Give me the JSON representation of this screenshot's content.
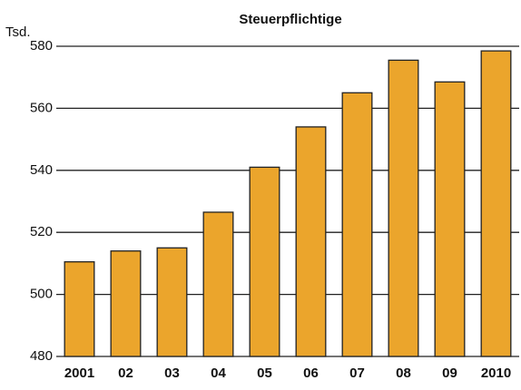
{
  "chart_data": {
    "type": "bar",
    "title": "Steuerpflichtige",
    "y_label": "Tsd.",
    "categories": [
      "2001",
      "02",
      "03",
      "04",
      "05",
      "06",
      "07",
      "08",
      "09",
      "2010"
    ],
    "values": [
      510.5,
      514,
      515,
      526.5,
      541,
      554,
      565,
      575.5,
      568.5,
      578.5
    ],
    "color": "#eba52c",
    "ylim": [
      480,
      580
    ],
    "yticks": [
      480,
      500,
      520,
      540,
      560,
      580
    ],
    "grid": true
  }
}
